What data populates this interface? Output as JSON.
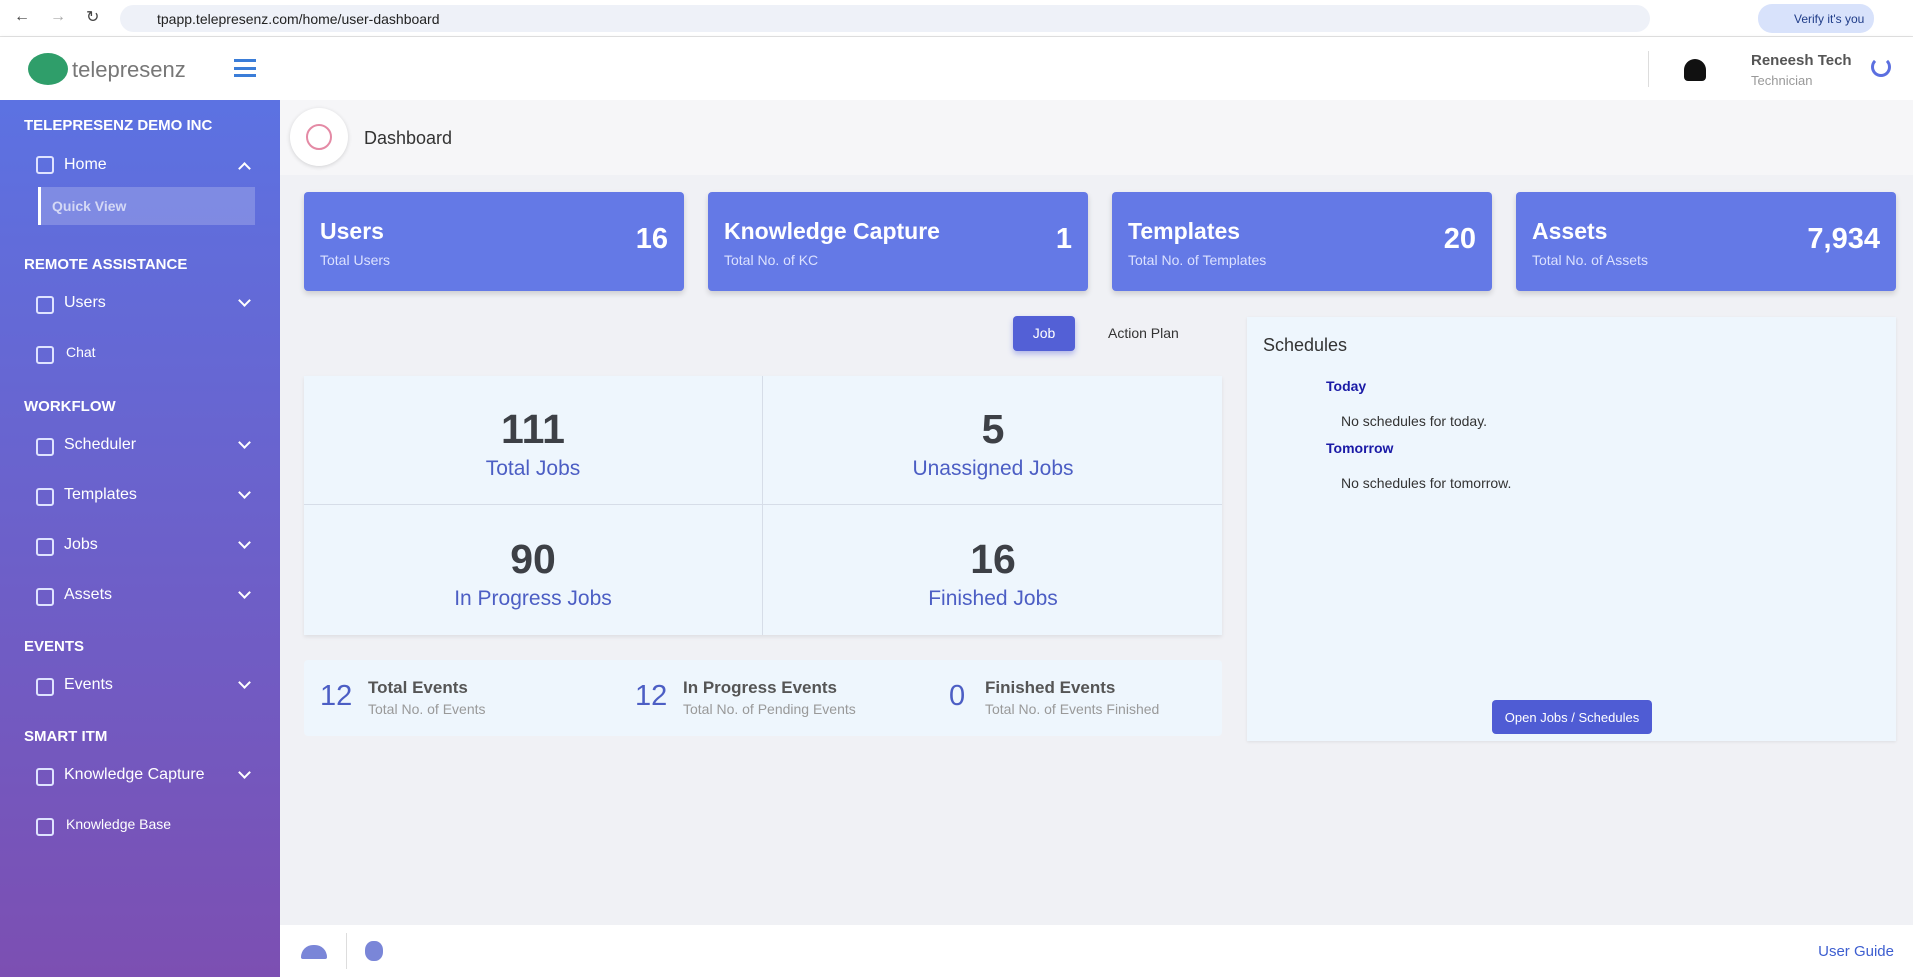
{
  "browser": {
    "url": "tpapp.telepresenz.com/home/user-dashboard",
    "verify": "Verify it's you"
  },
  "header": {
    "logo": "telepresenz",
    "user_name": "Reneesh Tech",
    "user_role": "Technician"
  },
  "sidebar": {
    "org": "TELEPRESENZ DEMO INC",
    "home": "Home",
    "quick_view": "Quick View",
    "sections": [
      {
        "title": "REMOTE ASSISTANCE",
        "items": [
          "Users",
          "Chat"
        ]
      },
      {
        "title": "WORKFLOW",
        "items": [
          "Scheduler",
          "Templates",
          "Jobs",
          "Assets"
        ]
      },
      {
        "title": "EVENTS",
        "items": [
          "Events"
        ]
      },
      {
        "title": "SMART ITM",
        "items": [
          "Knowledge Capture",
          "Knowledge Base"
        ]
      }
    ]
  },
  "page": {
    "title": "Dashboard"
  },
  "cards": [
    {
      "title": "Users",
      "subtitle": "Total Users",
      "value": 16
    },
    {
      "title": "Knowledge Capture",
      "subtitle": "Total No. of KC",
      "value": 1
    },
    {
      "title": "Templates",
      "subtitle": "Total No. of Templates",
      "value": 20
    },
    {
      "title": "Assets",
      "subtitle": "Total No. of Assets",
      "value": {
        "value": 7934,
        "label": "7,934"
      }
    }
  ],
  "tabs": [
    "Job",
    "Action Plan"
  ],
  "jobs": [
    {
      "value": 111,
      "label": "Total Jobs"
    },
    {
      "value": 5,
      "label": "Unassigned Jobs"
    },
    {
      "value": 90,
      "label": "In Progress Jobs"
    },
    {
      "value": 16,
      "label": "Finished Jobs"
    }
  ],
  "events": [
    {
      "value": 12,
      "label": "Total Events",
      "subtitle": "Total No. of Events"
    },
    {
      "value": 12,
      "label": "In Progress Events",
      "subtitle": "Total No. of Pending Events"
    },
    {
      "value": 0,
      "label": "Finished Events",
      "subtitle": "Total No. of Events Finished"
    }
  ],
  "schedules": {
    "title": "Schedules",
    "today": "Today",
    "today_text": "No schedules for today.",
    "tomorrow": "Tomorrow",
    "tomorrow_text": "No schedules for tomorrow.",
    "button": "Open Jobs / Schedules"
  },
  "footer": {
    "guide": "User Guide"
  }
}
